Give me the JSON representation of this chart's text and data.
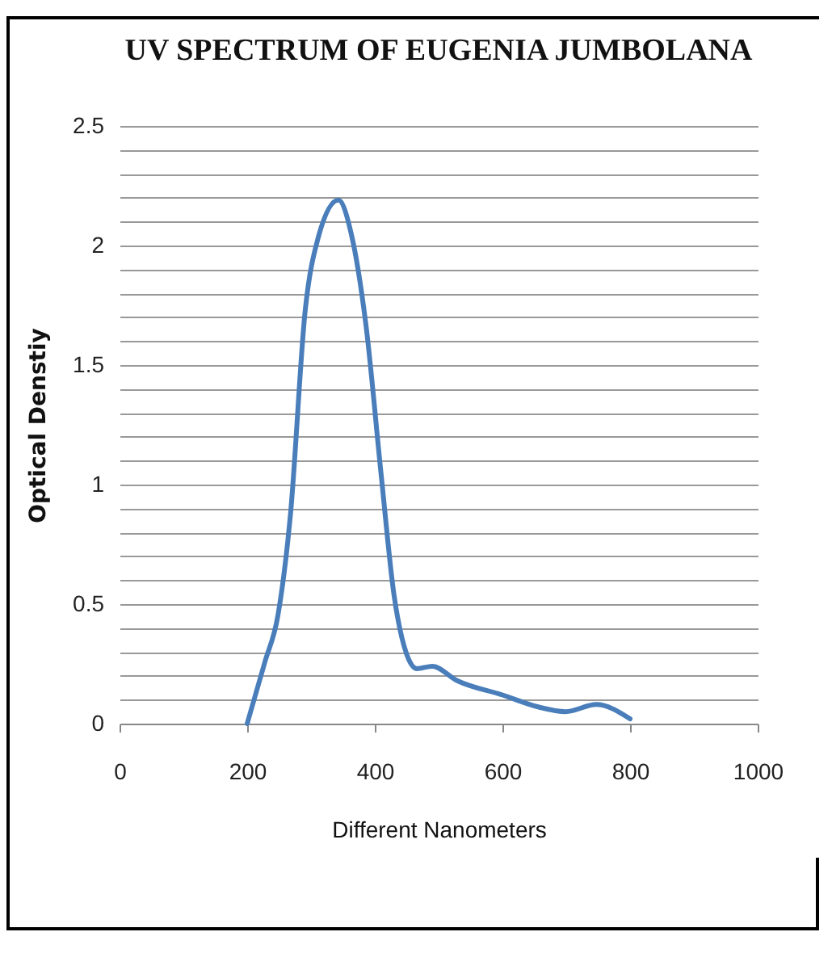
{
  "chart_data": {
    "type": "line",
    "title": "UV SPECTRUM OF EUGENIA JUMBOLANA",
    "xlabel": "Different Nanometers",
    "ylabel": "Optical Denstiy",
    "x": [
      200,
      228,
      248,
      268,
      291,
      311,
      343,
      363,
      386,
      410,
      430,
      450,
      466,
      490,
      529,
      600,
      656,
      699,
      747,
      800
    ],
    "series": [
      {
        "color": "#4a7ebb",
        "values": [
          0,
          0.26,
          0.45,
          0.88,
          1.73,
          2.03,
          2.19,
          2.05,
          1.67,
          1.04,
          0.54,
          0.29,
          0.23,
          0.24,
          0.18,
          0.12,
          0.07,
          0.05,
          0.08,
          0.02
        ]
      }
    ],
    "xlim": [
      0,
      1000
    ],
    "xticks": [
      0,
      200,
      400,
      600,
      800,
      1000
    ],
    "ylim": [
      0,
      2.5
    ],
    "yticks": [
      0,
      {
        "value": 0.1,
        "label": null
      },
      {
        "value": 0.2,
        "label": null
      },
      {
        "value": 0.3,
        "label": null
      },
      {
        "value": 0.4,
        "label": null
      },
      0.5,
      {
        "value": 0.6,
        "label": null
      },
      {
        "value": 0.7,
        "label": null
      },
      {
        "value": 0.8,
        "label": null
      },
      {
        "value": 0.9,
        "label": null
      },
      1,
      {
        "value": 1.1,
        "label": null
      },
      {
        "value": 1.2,
        "label": null
      },
      {
        "value": 1.3,
        "label": null
      },
      {
        "value": 1.4,
        "label": null
      },
      1.5,
      {
        "value": 1.6,
        "label": null
      },
      {
        "value": 1.7,
        "label": null
      },
      {
        "value": 1.8,
        "label": null
      },
      {
        "value": 1.9,
        "label": null
      },
      2,
      {
        "value": 2.1,
        "label": null
      },
      {
        "value": 2.2,
        "label": null
      },
      {
        "value": 2.3,
        "label": null
      },
      {
        "value": 2.4,
        "label": null
      },
      2.5
    ],
    "grid": "y",
    "marker": "none",
    "line_style": "solid"
  }
}
